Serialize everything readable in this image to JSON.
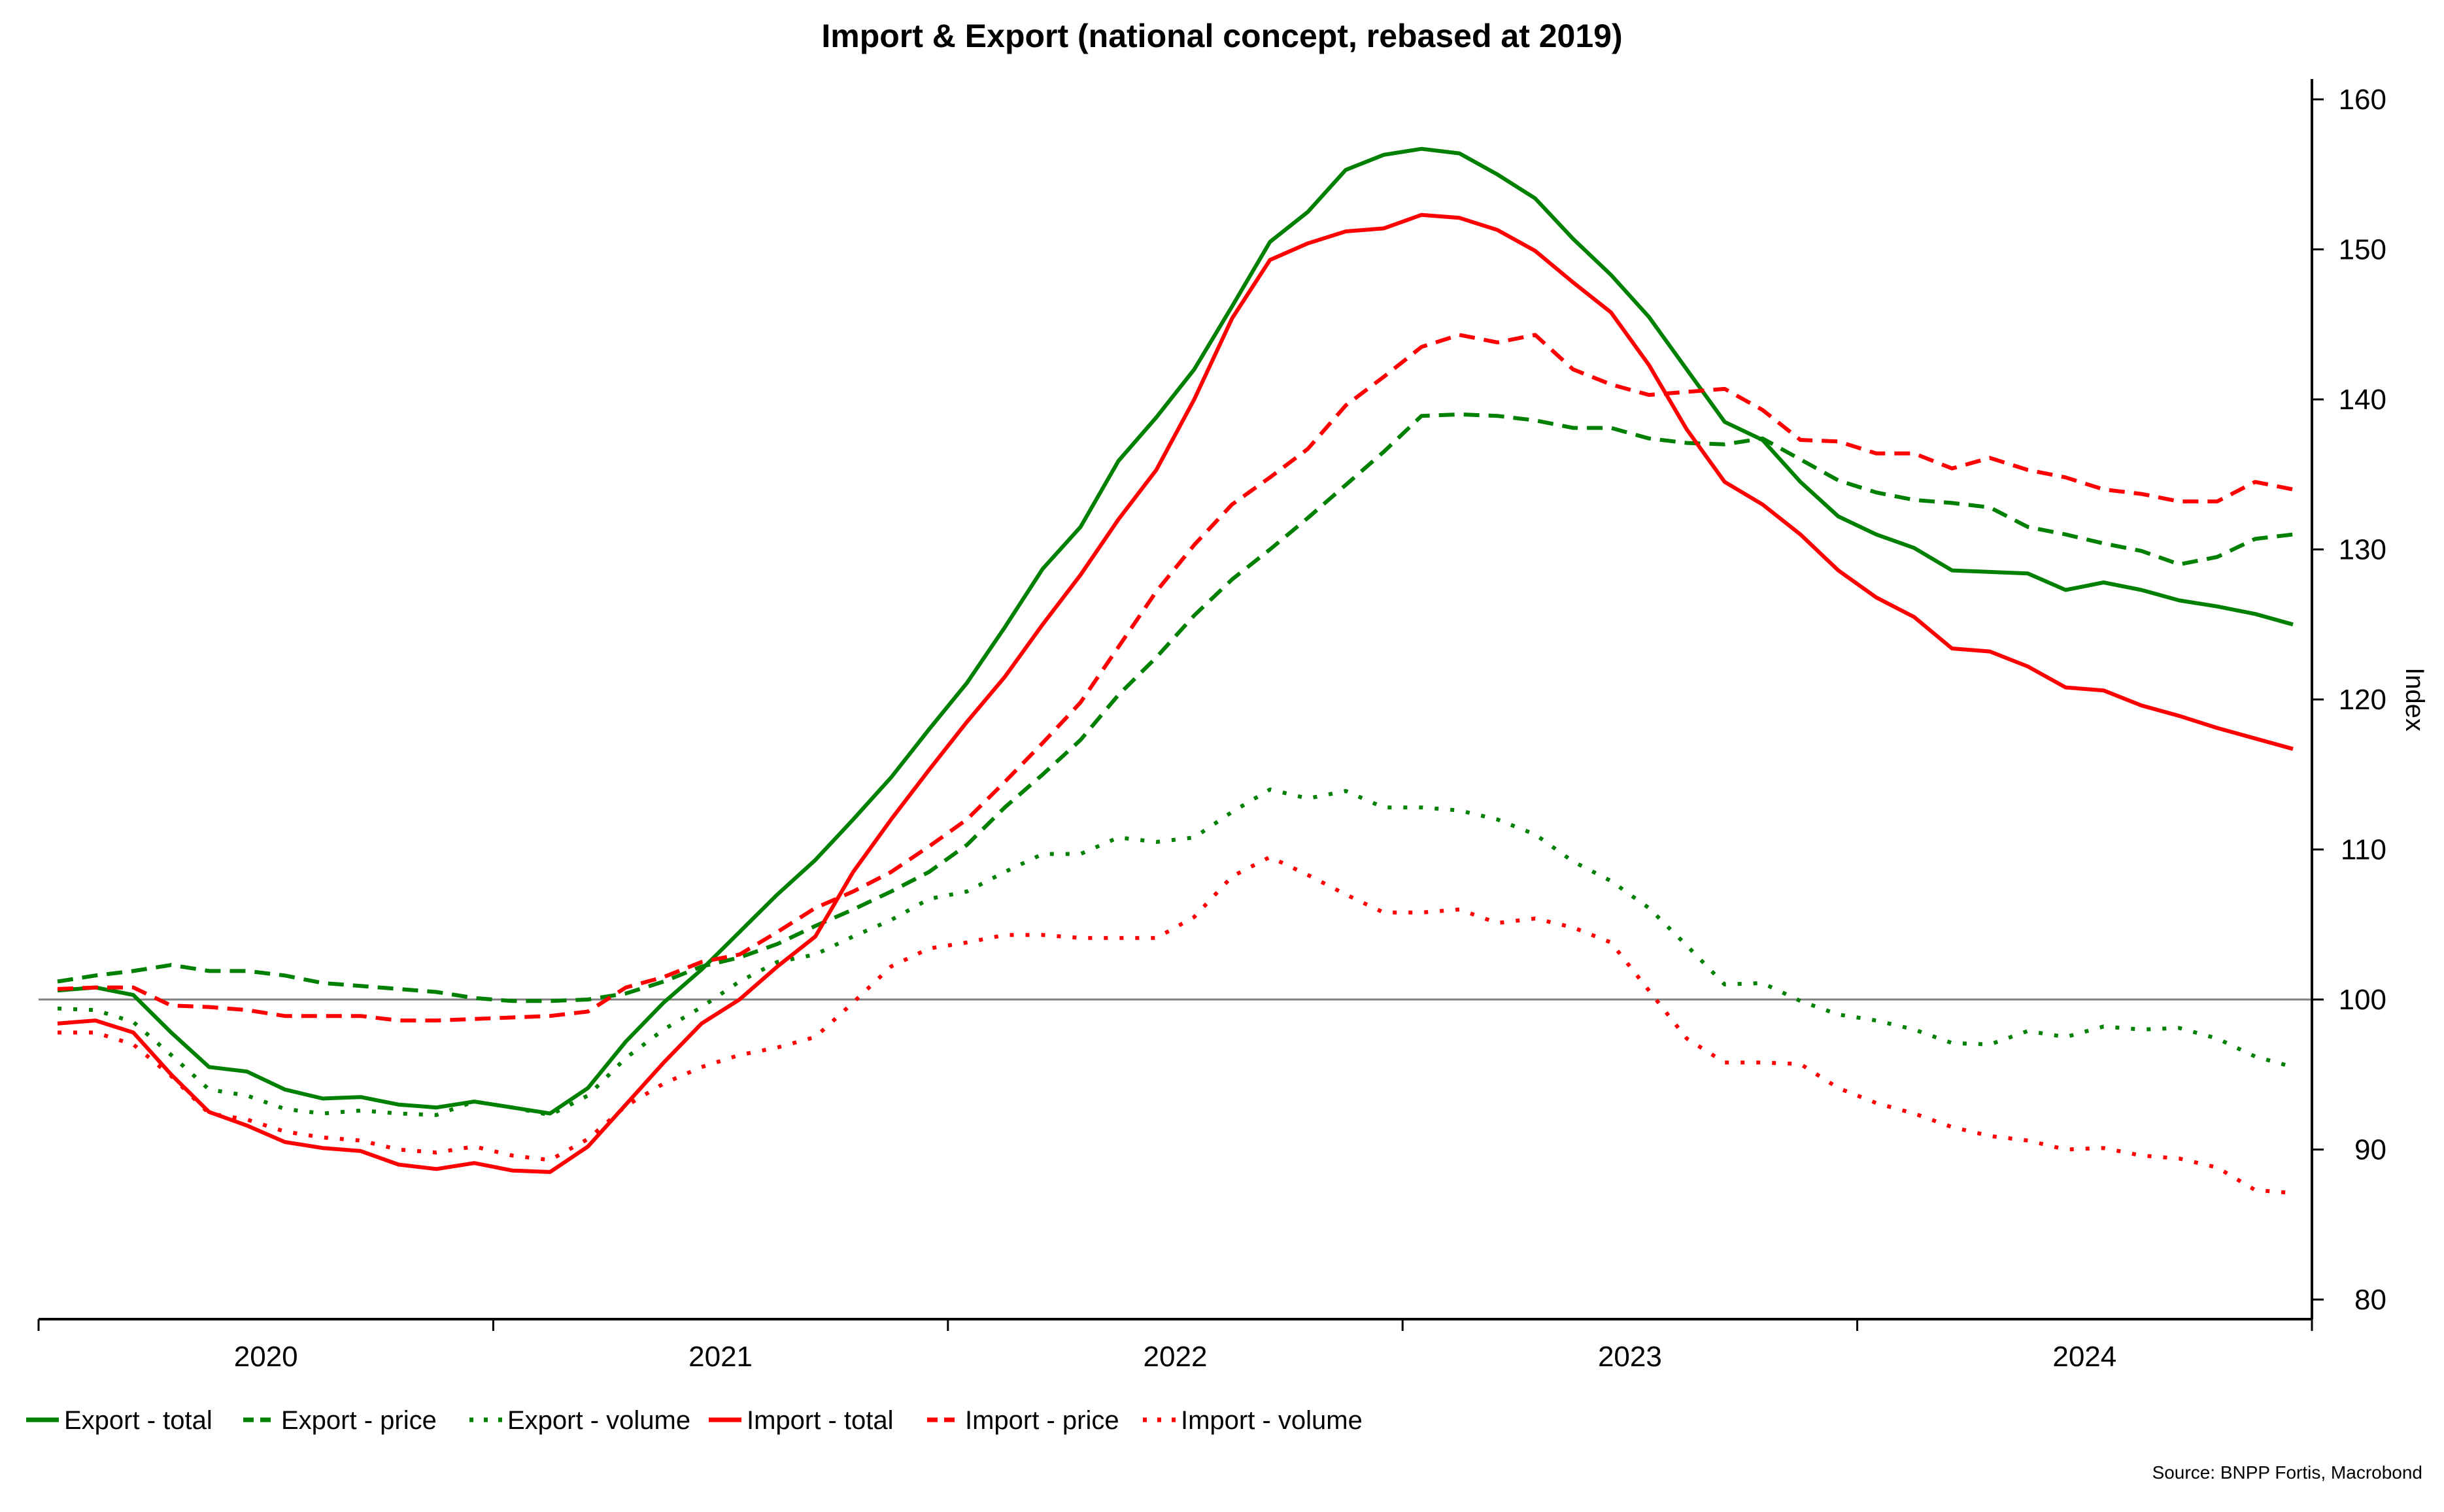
{
  "chart_data": {
    "type": "line",
    "title": "Import & Export (national concept, rebased at 2019)",
    "xlabel": "",
    "ylabel": "Index",
    "ylim": [
      80,
      160
    ],
    "yticks": [
      80,
      90,
      100,
      110,
      120,
      130,
      140,
      150,
      160
    ],
    "x_categories": [
      "2020",
      "2021",
      "2022",
      "2023",
      "2024"
    ],
    "x_frequency": "monthly",
    "x_start": "2020-01",
    "x_end": "2024-12",
    "reference_line": 100,
    "grid": false,
    "legend_position": "bottom",
    "source": "Source: BNPP Fortis, Macrobond",
    "series": [
      {
        "name": "Export - total",
        "color": "#008000",
        "style": "solid",
        "values": [
          100.6,
          100.8,
          100.3,
          97.8,
          95.5,
          95.2,
          94.0,
          93.4,
          93.5,
          93.0,
          92.8,
          93.2,
          92.8,
          92.4,
          94.1,
          97.2,
          99.8,
          102.0,
          104.5,
          107.0,
          109.3,
          112.0,
          114.8,
          118.0,
          121.1,
          124.8,
          128.7,
          131.5,
          135.9,
          138.8,
          142.0,
          146.2,
          150.5,
          152.5,
          155.3,
          156.3,
          156.7,
          156.4,
          155.0,
          153.4,
          150.7,
          148.3,
          145.5,
          142.0,
          138.5,
          137.3,
          134.5,
          132.2,
          131.0,
          130.1,
          128.6,
          128.5,
          128.4,
          127.3,
          127.8,
          127.3,
          126.6,
          126.2,
          125.7,
          125.0
        ]
      },
      {
        "name": "Export - price",
        "color": "#008000",
        "style": "dashed",
        "values": [
          101.2,
          101.6,
          101.9,
          102.3,
          101.9,
          101.9,
          101.6,
          101.1,
          100.9,
          100.7,
          100.5,
          100.1,
          99.9,
          99.9,
          100.0,
          100.4,
          101.2,
          102.2,
          102.8,
          103.7,
          104.9,
          106.0,
          107.2,
          108.5,
          110.3,
          112.8,
          115.0,
          117.3,
          120.3,
          122.8,
          125.6,
          128.0,
          130.0,
          132.1,
          134.3,
          136.5,
          138.9,
          139.0,
          138.9,
          138.6,
          138.1,
          138.1,
          137.4,
          137.1,
          137.0,
          137.4,
          136.0,
          134.6,
          133.8,
          133.3,
          133.1,
          132.8,
          131.5,
          131.0,
          130.4,
          129.9,
          129.0,
          129.5,
          130.7,
          131.0
        ]
      },
      {
        "name": "Export - volume",
        "color": "#008000",
        "style": "dotted",
        "values": [
          99.4,
          99.3,
          98.5,
          96.3,
          94.0,
          93.6,
          92.7,
          92.4,
          92.6,
          92.4,
          92.3,
          93.2,
          92.8,
          92.3,
          93.6,
          96.1,
          98.0,
          99.5,
          101.2,
          102.5,
          103.0,
          104.2,
          105.3,
          106.7,
          107.2,
          108.5,
          109.7,
          109.7,
          110.8,
          110.5,
          110.8,
          112.5,
          114.0,
          113.4,
          113.9,
          112.8,
          112.8,
          112.6,
          112.0,
          111.0,
          109.2,
          107.9,
          106.1,
          103.6,
          101.0,
          101.1,
          99.9,
          99.0,
          98.6,
          98.0,
          97.1,
          97.0,
          97.9,
          97.5,
          98.2,
          98.0,
          98.1,
          97.4,
          96.2,
          95.5
        ]
      },
      {
        "name": "Import - total",
        "color": "#ff0000",
        "style": "solid",
        "values": [
          98.4,
          98.6,
          97.8,
          95.0,
          92.5,
          91.6,
          90.5,
          90.1,
          89.9,
          89.0,
          88.7,
          89.1,
          88.6,
          88.5,
          90.2,
          93.0,
          95.8,
          98.4,
          100.0,
          102.2,
          104.2,
          108.5,
          112.0,
          115.3,
          118.5,
          121.5,
          125.0,
          128.3,
          132.0,
          135.3,
          140.0,
          145.4,
          149.3,
          150.4,
          151.2,
          151.4,
          152.3,
          152.1,
          151.3,
          149.9,
          147.8,
          145.8,
          142.3,
          138.0,
          134.5,
          133.0,
          131.0,
          128.6,
          126.8,
          125.5,
          123.4,
          123.2,
          122.2,
          120.8,
          120.6,
          119.6,
          118.9,
          118.1,
          117.4,
          116.7
        ]
      },
      {
        "name": "Import - price",
        "color": "#ff0000",
        "style": "dashed",
        "values": [
          100.7,
          100.8,
          100.8,
          99.6,
          99.5,
          99.3,
          98.9,
          98.9,
          98.9,
          98.6,
          98.6,
          98.7,
          98.8,
          98.9,
          99.2,
          100.8,
          101.5,
          102.5,
          103.0,
          104.5,
          106.1,
          107.2,
          108.5,
          110.2,
          112.0,
          114.5,
          117.1,
          119.8,
          123.5,
          127.2,
          130.3,
          133.0,
          134.8,
          136.7,
          139.6,
          141.5,
          143.5,
          144.3,
          143.8,
          144.3,
          142.0,
          141.0,
          140.3,
          140.5,
          140.7,
          139.3,
          137.3,
          137.2,
          136.4,
          136.4,
          135.4,
          136.1,
          135.3,
          134.8,
          134.0,
          133.7,
          133.2,
          133.2,
          134.5,
          134.0
        ]
      },
      {
        "name": "Import - volume",
        "color": "#ff0000",
        "style": "dotted",
        "values": [
          97.8,
          97.8,
          97.0,
          94.9,
          92.4,
          92.0,
          91.2,
          90.8,
          90.6,
          90.0,
          89.8,
          90.2,
          89.6,
          89.3,
          90.7,
          92.9,
          94.4,
          95.5,
          96.3,
          96.8,
          97.5,
          99.8,
          102.2,
          103.4,
          103.8,
          104.3,
          104.3,
          104.1,
          104.1,
          104.1,
          105.5,
          108.2,
          109.5,
          108.3,
          107.0,
          105.8,
          105.8,
          106.0,
          105.1,
          105.4,
          104.8,
          103.8,
          100.6,
          97.4,
          95.8,
          95.8,
          95.7,
          94.1,
          93.1,
          92.4,
          91.5,
          90.9,
          90.6,
          90.0,
          90.1,
          89.6,
          89.4,
          88.8,
          87.3,
          87.1
        ]
      }
    ]
  }
}
